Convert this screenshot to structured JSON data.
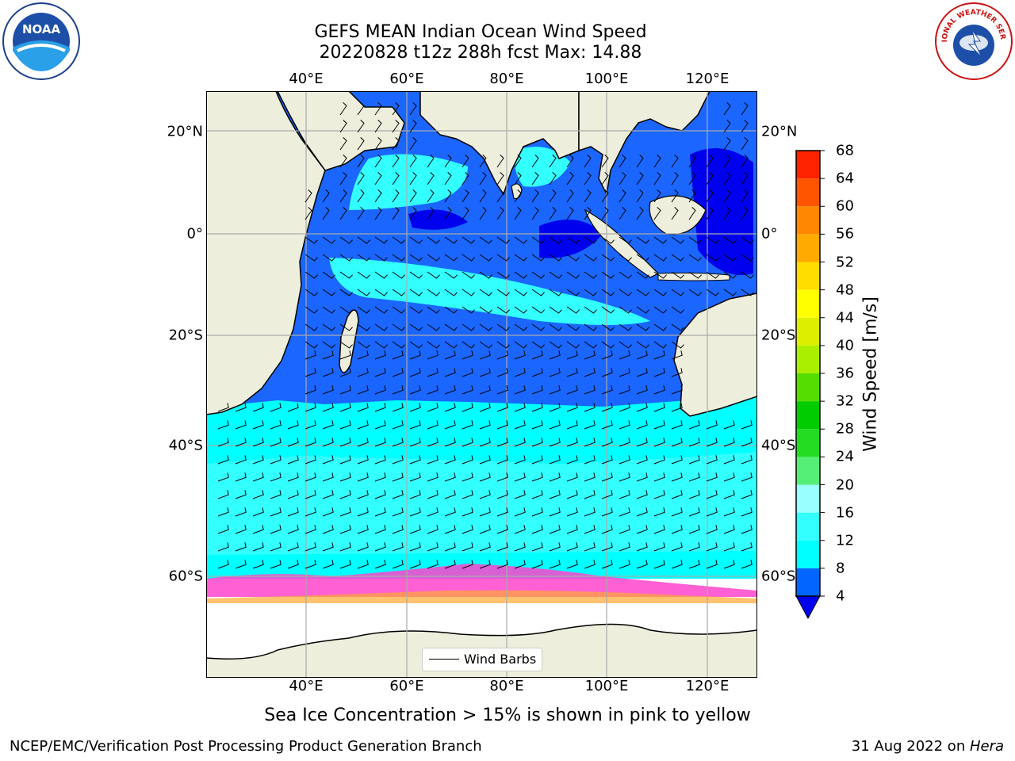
{
  "title": {
    "line1": "GEFS MEAN Indian Ocean Wind Speed",
    "line2": "20220828 t12z 288h fcst   Max: 14.88"
  },
  "axes": {
    "lon_ticks": [
      "40°E",
      "60°E",
      "80°E",
      "100°E",
      "120°E"
    ],
    "lat_ticks": [
      "20°N",
      "0°",
      "20°S",
      "40°S",
      "60°S"
    ]
  },
  "colorbar": {
    "label": "Wind Speed [m/s]",
    "ticks": [
      "4",
      "8",
      "12",
      "16",
      "20",
      "24",
      "28",
      "32",
      "36",
      "40",
      "44",
      "48",
      "52",
      "56",
      "60",
      "64",
      "68"
    ],
    "colors": [
      "#0066ff",
      "#00ffff",
      "#33ffff",
      "#99ffff",
      "#55ee77",
      "#22dd22",
      "#00cc00",
      "#55dd00",
      "#aaee00",
      "#ddee00",
      "#ffff00",
      "#ffdd00",
      "#ffaa00",
      "#ff8800",
      "#ff5500",
      "#ff2200"
    ],
    "extend_color": "#0000ee"
  },
  "legend": {
    "label": "Wind Barbs"
  },
  "subtitle": "Sea Ice Concentration > 15% is shown in pink to yellow",
  "footer": {
    "left": "NCEP/EMC/Verification Post Processing Product Generation Branch",
    "date": "31 Aug 2022 on ",
    "machine": "Hera"
  },
  "logos": {
    "left": "NOAA",
    "right": "NATIONAL WEATHER SERVICE"
  },
  "colors": {
    "land": "#eeeedd",
    "ocean_dark": "#1a66ff",
    "ocean_light": "#00ffff",
    "ice": "#ff44cc"
  }
}
